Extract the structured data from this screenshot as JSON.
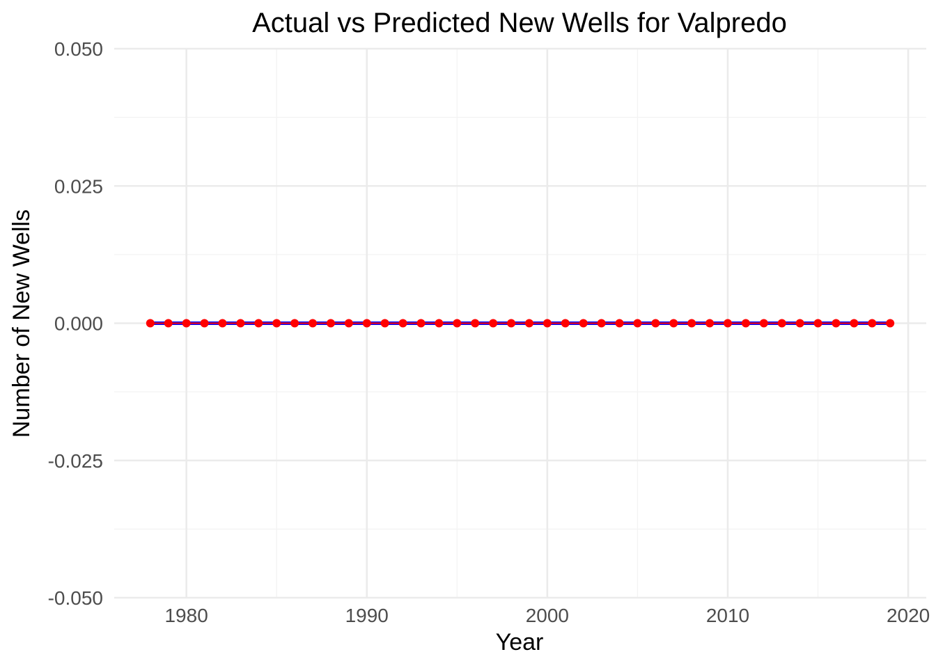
{
  "chart_data": {
    "type": "line",
    "title": "Actual vs Predicted New Wells for Valpredo",
    "xlabel": "Year",
    "ylabel": "Number of New Wells",
    "xlim": [
      1976,
      2021
    ],
    "ylim": [
      -0.05,
      0.05
    ],
    "x_ticks": [
      1980,
      1990,
      2000,
      2010,
      2020
    ],
    "x_tick_labels": [
      "1980",
      "1990",
      "2000",
      "2010",
      "2020"
    ],
    "y_ticks": [
      -0.05,
      -0.025,
      0,
      0.025,
      0.05
    ],
    "y_tick_labels": [
      "-0.050",
      "-0.025",
      "0.000",
      "0.025",
      "0.050"
    ],
    "grid": true,
    "legend": "none",
    "x": [
      1978,
      1979,
      1980,
      1981,
      1982,
      1983,
      1984,
      1985,
      1986,
      1987,
      1988,
      1989,
      1990,
      1991,
      1992,
      1993,
      1994,
      1995,
      1996,
      1997,
      1998,
      1999,
      2000,
      2001,
      2002,
      2003,
      2004,
      2005,
      2006,
      2007,
      2008,
      2009,
      2010,
      2011,
      2012,
      2013,
      2014,
      2015,
      2016,
      2017,
      2018,
      2019
    ],
    "series": [
      {
        "color": "#0000ff",
        "style": "line",
        "values": [
          0,
          0,
          0,
          0,
          0,
          0,
          0,
          0,
          0,
          0,
          0,
          0,
          0,
          0,
          0,
          0,
          0,
          0,
          0,
          0,
          0,
          0,
          0,
          0,
          0,
          0,
          0,
          0,
          0,
          0,
          0,
          0,
          0,
          0,
          0,
          0,
          0,
          0,
          0,
          0,
          0,
          0
        ]
      },
      {
        "color": "#ff0000",
        "style": "line+points",
        "values": [
          0,
          0,
          0,
          0,
          0,
          0,
          0,
          0,
          0,
          0,
          0,
          0,
          0,
          0,
          0,
          0,
          0,
          0,
          0,
          0,
          0,
          0,
          0,
          0,
          0,
          0,
          0,
          0,
          0,
          0,
          0,
          0,
          0,
          0,
          0,
          0,
          0,
          0,
          0,
          0,
          0,
          0
        ]
      }
    ]
  }
}
